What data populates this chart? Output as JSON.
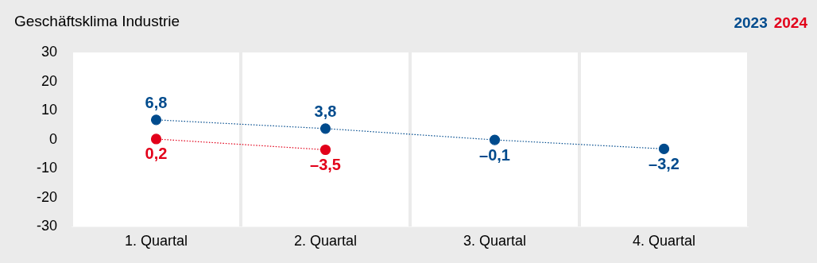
{
  "chart_data": {
    "type": "line",
    "title": "Geschäftsklima Industrie",
    "categories": [
      "1. Quartal",
      "2. Quartal",
      "3. Quartal",
      "4. Quartal"
    ],
    "series": [
      {
        "name": "2023",
        "color": "#004b8d",
        "values": [
          6.8,
          3.8,
          -0.1,
          -3.2
        ],
        "value_labels": [
          "6,8",
          "3,8",
          "–0,1",
          "–3,2"
        ]
      },
      {
        "name": "2024",
        "color": "#e2001a",
        "values": [
          0.2,
          -3.5,
          null,
          null
        ],
        "value_labels": [
          "0,2",
          "–3,5",
          null,
          null
        ]
      }
    ],
    "ylim": [
      -30,
      30
    ],
    "yticks": [
      -30,
      -20,
      -10,
      0,
      10,
      20,
      30
    ],
    "grid": "x",
    "legend": "top right",
    "marker": "circle",
    "line_style": "dotted"
  }
}
